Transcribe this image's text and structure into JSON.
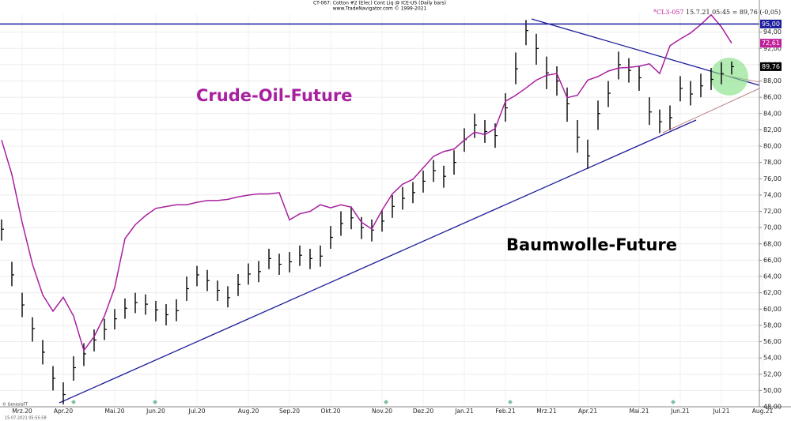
{
  "chart_data": {
    "type": "ohlc",
    "title": "CT-067: Cotton #2 (Elec) Cont Liq @ ICE-US (Daily bars)",
    "subtitle": "www.TradeNavigator.com © 1999-2021",
    "symbol": "*CL3-057",
    "quote": "15.7.21 05:45 = 89,76 (-0,05)",
    "copyright": "© GenesisFT",
    "timestamp": "15.07.2021 05:55:58",
    "grid": true,
    "categories": [
      null,
      null,
      "Mrz.20",
      null,
      null,
      null,
      "Apr.20",
      null,
      null,
      null,
      null,
      "Mai.20",
      null,
      null,
      null,
      "Jun.20",
      null,
      null,
      null,
      "Jul.20",
      null,
      null,
      null,
      null,
      "Aug.20",
      null,
      null,
      null,
      "Sep.20",
      null,
      null,
      null,
      "Okt.20",
      null,
      null,
      null,
      null,
      "Nov.20",
      null,
      null,
      null,
      "Dez.20",
      null,
      null,
      null,
      "Jan.21",
      null,
      null,
      null,
      "Feb.21",
      null,
      null,
      null,
      "Mrz.21",
      null,
      null,
      null,
      "Apr.21",
      null,
      null,
      null,
      null,
      "Mai.21",
      null,
      null,
      null,
      "Jun.21",
      null,
      null,
      null,
      "Jul.21",
      null,
      null,
      null,
      "Aug.21"
    ],
    "ylim": [
      48,
      96.2
    ],
    "y2lim": [
      12.5,
      77.4
    ],
    "yticks": [
      {
        "value": 48,
        "label": "48,00"
      },
      {
        "value": 50,
        "label": "50,00"
      },
      {
        "value": 52,
        "label": "52,00"
      },
      {
        "value": 54,
        "label": "54,00"
      },
      {
        "value": 56,
        "label": "56,00"
      },
      {
        "value": 58,
        "label": "58,00"
      },
      {
        "value": 60,
        "label": "60,00"
      },
      {
        "value": 62,
        "label": "62,00"
      },
      {
        "value": 64,
        "label": "64,00"
      },
      {
        "value": 66,
        "label": "66,00"
      },
      {
        "value": 68,
        "label": "68,00"
      },
      {
        "value": 70,
        "label": "70,00"
      },
      {
        "value": 72,
        "label": "72,00"
      },
      {
        "value": 74,
        "label": "74,00"
      },
      {
        "value": 76,
        "label": "76,00"
      },
      {
        "value": 78,
        "label": "78,00"
      },
      {
        "value": 80,
        "label": "80,00"
      },
      {
        "value": 82,
        "label": "82,00"
      },
      {
        "value": 84,
        "label": "84,00"
      },
      {
        "value": 86,
        "label": "86,00"
      },
      {
        "value": 88,
        "label": "88,00"
      },
      {
        "value": 90,
        "label": "90,00"
      },
      {
        "value": 92,
        "label": "92,00"
      },
      {
        "value": 94,
        "label": "94,00"
      }
    ],
    "price_labels": [
      {
        "value": 95,
        "label": "95,00",
        "color": "#1c1c9c",
        "line": true
      },
      {
        "value": 89.76,
        "label": "89,76",
        "color": "#000000"
      },
      {
        "value": 72.61,
        "label": "72,61",
        "color": "#c0209a",
        "axis": "y2"
      }
    ],
    "series": [
      {
        "name": "Baumwolle-Future",
        "type": "ohlc",
        "color": "#000000",
        "high": [
          71.0,
          65.8,
          62.0,
          59.0,
          56.2,
          53.0,
          51.0,
          54.2,
          55.8,
          57.5,
          58.8,
          60.0,
          61.3,
          62.0,
          61.8,
          61.0,
          60.6,
          61.2,
          64.0,
          65.3,
          64.8,
          63.5,
          62.8,
          64.3,
          65.6,
          65.9,
          67.4,
          66.8,
          67.0,
          67.8,
          67.4,
          67.8,
          70.2,
          72.0,
          72.6,
          71.3,
          71.0,
          72.2,
          74.0,
          75.0,
          75.6,
          77.0,
          78.3,
          77.6,
          79.5,
          82.2,
          84.0,
          83.2,
          82.8,
          86.5,
          91.5,
          95.5,
          93.8,
          91.0,
          89.8,
          87.2,
          83.2,
          80.8,
          85.6,
          88.0,
          91.6,
          90.8,
          89.9,
          86.0,
          84.5,
          85.0,
          88.6,
          88.0,
          88.9,
          89.6,
          90.3,
          90.4,
          null,
          null,
          null
        ],
        "low": [
          68.4,
          62.8,
          59.0,
          56.0,
          53.2,
          50.0,
          48.3,
          51.2,
          53.0,
          54.8,
          56.2,
          57.5,
          58.8,
          59.5,
          59.3,
          58.5,
          58.0,
          58.5,
          61.0,
          62.8,
          62.2,
          61.0,
          60.2,
          61.6,
          63.0,
          63.3,
          64.9,
          64.2,
          64.5,
          65.3,
          64.9,
          65.2,
          67.4,
          69.0,
          69.8,
          68.6,
          68.3,
          69.5,
          71.2,
          72.2,
          73.0,
          74.3,
          75.6,
          74.9,
          76.5,
          79.3,
          81.0,
          80.4,
          79.8,
          83.0,
          87.6,
          92.4,
          90.0,
          87.0,
          86.2,
          83.0,
          79.2,
          77.2,
          82.0,
          84.8,
          88.2,
          87.8,
          86.8,
          82.6,
          81.6,
          82.0,
          85.5,
          85.0,
          86.0,
          86.9,
          87.6,
          88.8,
          null,
          null,
          null
        ],
        "close": [
          69.8,
          64.2,
          60.5,
          57.6,
          54.7,
          51.5,
          49.5,
          52.8,
          54.5,
          56.2,
          57.5,
          58.8,
          60.1,
          60.8,
          60.6,
          59.9,
          59.3,
          59.8,
          62.5,
          64.2,
          63.5,
          62.3,
          61.4,
          63.0,
          64.3,
          64.6,
          66.2,
          65.5,
          65.8,
          66.6,
          66.2,
          66.5,
          68.8,
          70.5,
          71.2,
          70.0,
          69.7,
          70.8,
          72.6,
          73.6,
          74.3,
          75.7,
          77.0,
          76.3,
          78.0,
          80.8,
          82.6,
          81.8,
          81.3,
          84.7,
          89.5,
          94.2,
          92.0,
          89.0,
          88.0,
          85.2,
          81.1,
          78.8,
          84.0,
          86.5,
          90.0,
          89.3,
          88.4,
          84.2,
          83.0,
          83.5,
          87.1,
          86.4,
          87.4,
          88.2,
          88.9,
          89.76,
          null,
          null,
          null
        ]
      },
      {
        "name": "Crude-Oil-Future",
        "type": "line",
        "color": "#a8209f",
        "axis": "y2",
        "values": [
          56.6,
          50.9,
          43.0,
          36.1,
          31.0,
          28.3,
          30.6,
          27.5,
          21.8,
          24.1,
          27.5,
          32.2,
          40.3,
          42.6,
          44.1,
          45.3,
          45.6,
          45.9,
          45.9,
          46.3,
          46.6,
          46.6,
          46.8,
          47.2,
          47.5,
          47.7,
          47.7,
          47.9,
          43.4,
          44.4,
          44.8,
          45.9,
          45.4,
          45.9,
          45.5,
          43.0,
          41.9,
          45.0,
          47.7,
          49.3,
          50.1,
          52.0,
          53.9,
          54.7,
          55.1,
          56.6,
          57.9,
          57.5,
          58.5,
          63.0,
          64.0,
          65.2,
          66.5,
          67.3,
          67.6,
          63.6,
          64.0,
          66.5,
          67.1,
          68.0,
          68.5,
          68.6,
          68.8,
          69.2,
          67.6,
          72.2,
          73.3,
          74.3,
          75.7,
          77.3,
          75.3,
          72.61,
          null,
          null,
          null
        ]
      }
    ]
  }
}
